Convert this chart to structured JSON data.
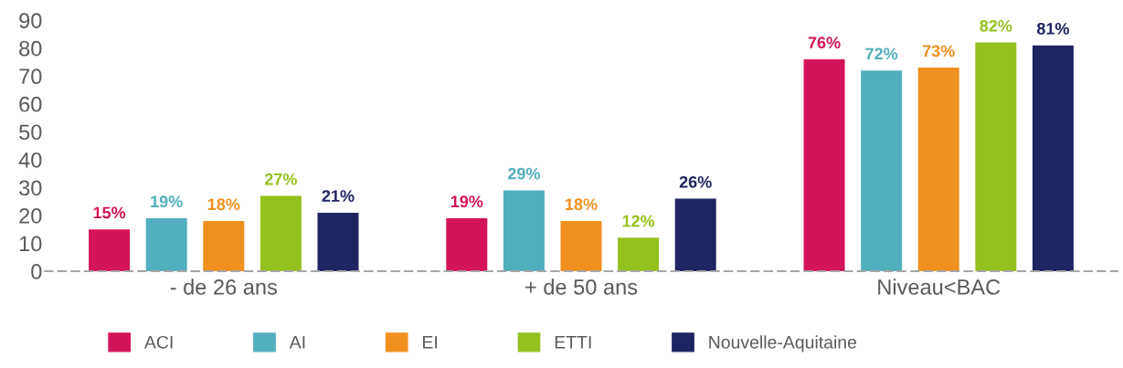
{
  "chart_data": {
    "type": "bar",
    "categories": [
      "- de 26 ans",
      "+ de 50 ans",
      "Niveau<BAC"
    ],
    "series": [
      {
        "name": "ACI",
        "color": "#d4145a",
        "values": [
          15,
          19,
          76
        ],
        "value_labels": [
          "15%",
          "19%",
          "76%"
        ]
      },
      {
        "name": "AI",
        "color": "#52afbd",
        "values": [
          19,
          29,
          72
        ],
        "value_labels": [
          "19%",
          "29%",
          "72%"
        ]
      },
      {
        "name": "EI",
        "color": "#f0901e",
        "values": [
          18,
          18,
          73
        ],
        "value_labels": [
          "18%",
          "18%",
          "73%"
        ]
      },
      {
        "name": "ETTI",
        "color": "#95c11f",
        "values": [
          27,
          12,
          82
        ],
        "value_labels": [
          "27%",
          "12%",
          "82%"
        ]
      },
      {
        "name": "Nouvelle-Aquitaine",
        "color": "#1f2563",
        "values": [
          21,
          26,
          81
        ],
        "value_labels": [
          "21%",
          "26%",
          "81%"
        ]
      }
    ],
    "ylim": [
      0,
      90
    ],
    "yticks": [
      0,
      10,
      20,
      30,
      40,
      50,
      60,
      70,
      80,
      90
    ],
    "grid": false,
    "legend": "bottom"
  }
}
